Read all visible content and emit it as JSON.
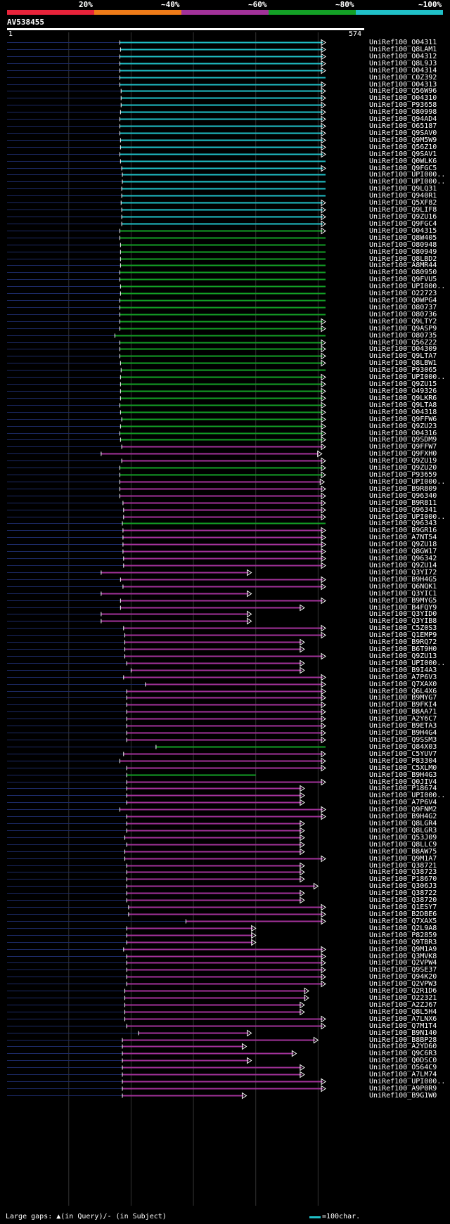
{
  "legend": {
    "labels": [
      "20%",
      "~40%",
      "~60%",
      "~80%",
      "~100%"
    ],
    "colors": [
      "#e8233a",
      "#ef7b18",
      "#a2329a",
      "#13a026",
      "#20c0c8"
    ]
  },
  "query": {
    "id": "AV538455",
    "start": "1",
    "end": "574"
  },
  "hits": [
    {
      "name": "UniRef100_O04311",
      "class": 4,
      "start": 182,
      "end": 512,
      "arrow": true
    },
    {
      "name": "UniRef100_Q8LAM1",
      "class": 4,
      "start": 183,
      "end": 512,
      "arrow": true
    },
    {
      "name": "UniRef100_O04312",
      "class": 4,
      "start": 182,
      "end": 512,
      "arrow": true
    },
    {
      "name": "UniRef100_Q8L9J3",
      "class": 4,
      "start": 182,
      "end": 512,
      "arrow": true
    },
    {
      "name": "UniRef100_O04314",
      "class": 4,
      "start": 182,
      "end": 512,
      "arrow": true
    },
    {
      "name": "UniRef100_C0Z392",
      "class": 4,
      "start": 182,
      "end": 512,
      "arrow": false
    },
    {
      "name": "UniRef100_O04313",
      "class": 4,
      "start": 182,
      "end": 512,
      "arrow": true
    },
    {
      "name": "UniRef100_Q56W96",
      "class": 4,
      "start": 184,
      "end": 512,
      "arrow": true
    },
    {
      "name": "UniRef100_O04310",
      "class": 4,
      "start": 184,
      "end": 512,
      "arrow": true
    },
    {
      "name": "UniRef100_P93658",
      "class": 4,
      "start": 184,
      "end": 512,
      "arrow": true
    },
    {
      "name": "UniRef100_O80998",
      "class": 4,
      "start": 183,
      "end": 512,
      "arrow": true
    },
    {
      "name": "UniRef100_Q94AD4",
      "class": 4,
      "start": 182,
      "end": 512,
      "arrow": true
    },
    {
      "name": "UniRef100_O65187",
      "class": 4,
      "start": 182,
      "end": 512,
      "arrow": true
    },
    {
      "name": "UniRef100_Q9SAV0",
      "class": 4,
      "start": 182,
      "end": 512,
      "arrow": true
    },
    {
      "name": "UniRef100_Q9M5W9",
      "class": 4,
      "start": 183,
      "end": 512,
      "arrow": true
    },
    {
      "name": "UniRef100_Q56Z10",
      "class": 4,
      "start": 183,
      "end": 512,
      "arrow": true
    },
    {
      "name": "UniRef100_Q9SAV1",
      "class": 4,
      "start": 182,
      "end": 512,
      "arrow": true
    },
    {
      "name": "UniRef100_Q0WLK6",
      "class": 4,
      "start": 183,
      "end": 512,
      "arrow": false
    },
    {
      "name": "UniRef100_Q9FGC5",
      "class": 4,
      "start": 185,
      "end": 512,
      "arrow": true
    },
    {
      "name": "UniRef100_UPI000..",
      "class": 4,
      "start": 186,
      "end": 512,
      "arrow": false
    },
    {
      "name": "UniRef100_UPI000..",
      "class": 4,
      "start": 186,
      "end": 512,
      "arrow": false
    },
    {
      "name": "UniRef100_Q9LQ31",
      "class": 4,
      "start": 185,
      "end": 512,
      "arrow": false
    },
    {
      "name": "UniRef100_Q940R1",
      "class": 4,
      "start": 185,
      "end": 512,
      "arrow": false
    },
    {
      "name": "UniRef100_Q5XF82",
      "class": 4,
      "start": 184,
      "end": 512,
      "arrow": true
    },
    {
      "name": "UniRef100_Q9LIF8",
      "class": 4,
      "start": 185,
      "end": 512,
      "arrow": true
    },
    {
      "name": "UniRef100_Q9ZU16",
      "class": 4,
      "start": 185,
      "end": 512,
      "arrow": true
    },
    {
      "name": "UniRef100_Q9FGC4",
      "class": 4,
      "start": 185,
      "end": 512,
      "arrow": true
    },
    {
      "name": "UniRef100_O04315",
      "class": 3,
      "start": 182,
      "end": 512,
      "arrow": true
    },
    {
      "name": "UniRef100_Q8W405",
      "class": 3,
      "start": 182,
      "end": 512,
      "arrow": false
    },
    {
      "name": "UniRef100_O80948",
      "class": 3,
      "start": 183,
      "end": 512,
      "arrow": false
    },
    {
      "name": "UniRef100_O80949",
      "class": 3,
      "start": 183,
      "end": 512,
      "arrow": false
    },
    {
      "name": "UniRef100_Q8LBD2",
      "class": 3,
      "start": 183,
      "end": 512,
      "arrow": false
    },
    {
      "name": "UniRef100_A8MR44",
      "class": 3,
      "start": 183,
      "end": 512,
      "arrow": false
    },
    {
      "name": "UniRef100_O80950",
      "class": 3,
      "start": 182,
      "end": 512,
      "arrow": false
    },
    {
      "name": "UniRef100_Q9FVU5",
      "class": 3,
      "start": 182,
      "end": 512,
      "arrow": false
    },
    {
      "name": "UniRef100_UPI000..",
      "class": 3,
      "start": 183,
      "end": 512,
      "arrow": false
    },
    {
      "name": "UniRef100_O22723",
      "class": 3,
      "start": 183,
      "end": 512,
      "arrow": false
    },
    {
      "name": "UniRef100_Q0WPG4",
      "class": 3,
      "start": 182,
      "end": 512,
      "arrow": false
    },
    {
      "name": "UniRef100_O80737",
      "class": 3,
      "start": 182,
      "end": 512,
      "arrow": false
    },
    {
      "name": "UniRef100_O80736",
      "class": 3,
      "start": 182,
      "end": 512,
      "arrow": false
    },
    {
      "name": "UniRef100_Q9LTY2",
      "class": 3,
      "start": 182,
      "end": 512,
      "arrow": true
    },
    {
      "name": "UniRef100_Q9ASP9",
      "class": 3,
      "start": 182,
      "end": 512,
      "arrow": true
    },
    {
      "name": "UniRef100_O80735",
      "class": 3,
      "start": 174,
      "end": 512,
      "arrow": false
    },
    {
      "name": "UniRef100_Q56Z22",
      "class": 3,
      "start": 182,
      "end": 512,
      "arrow": true
    },
    {
      "name": "UniRef100_O04309",
      "class": 3,
      "start": 182,
      "end": 512,
      "arrow": true
    },
    {
      "name": "UniRef100_Q9LTA7",
      "class": 3,
      "start": 182,
      "end": 512,
      "arrow": true
    },
    {
      "name": "UniRef100_Q8LBW1",
      "class": 3,
      "start": 183,
      "end": 512,
      "arrow": true
    },
    {
      "name": "UniRef100_P93065",
      "class": 3,
      "start": 184,
      "end": 512,
      "arrow": false
    },
    {
      "name": "UniRef100_UPI000..",
      "class": 3,
      "start": 183,
      "end": 512,
      "arrow": true
    },
    {
      "name": "UniRef100_Q9ZU15",
      "class": 3,
      "start": 183,
      "end": 512,
      "arrow": true
    },
    {
      "name": "UniRef100_O49326",
      "class": 3,
      "start": 183,
      "end": 512,
      "arrow": true
    },
    {
      "name": "UniRef100_Q9LKR6",
      "class": 3,
      "start": 183,
      "end": 512,
      "arrow": true
    },
    {
      "name": "UniRef100_Q9LTA8",
      "class": 3,
      "start": 182,
      "end": 512,
      "arrow": true
    },
    {
      "name": "UniRef100_O04318",
      "class": 3,
      "start": 183,
      "end": 512,
      "arrow": true
    },
    {
      "name": "UniRef100_Q9FFW6",
      "class": 3,
      "start": 185,
      "end": 512,
      "arrow": true
    },
    {
      "name": "UniRef100_Q9ZU23",
      "class": 3,
      "start": 183,
      "end": 512,
      "arrow": true
    },
    {
      "name": "UniRef100_O04316",
      "class": 3,
      "start": 182,
      "end": 512,
      "arrow": true
    },
    {
      "name": "UniRef100_Q9SDM9",
      "class": 3,
      "start": 183,
      "end": 512,
      "arrow": true
    },
    {
      "name": "UniRef100_Q9FFW7",
      "class": 2,
      "start": 185,
      "end": 512,
      "arrow": true
    },
    {
      "name": "UniRef100_Q9FXH0",
      "class": 2,
      "start": 152,
      "end": 506,
      "arrow": true
    },
    {
      "name": "UniRef100_Q9ZU19",
      "class": 2,
      "start": 185,
      "end": 512,
      "arrow": true
    },
    {
      "name": "UniRef100_Q9ZU20",
      "class": 3,
      "start": 182,
      "end": 512,
      "arrow": true
    },
    {
      "name": "UniRef100_P93659",
      "class": 3,
      "start": 182,
      "end": 512,
      "arrow": true
    },
    {
      "name": "UniRef100_UPI000..",
      "class": 2,
      "start": 182,
      "end": 510,
      "arrow": true
    },
    {
      "name": "UniRef100_B9R809",
      "class": 2,
      "start": 182,
      "end": 512,
      "arrow": true
    },
    {
      "name": "UniRef100_Q96340",
      "class": 2,
      "start": 182,
      "end": 512,
      "arrow": true
    },
    {
      "name": "UniRef100_B9R811",
      "class": 2,
      "start": 187,
      "end": 512,
      "arrow": true
    },
    {
      "name": "UniRef100_Q96341",
      "class": 2,
      "start": 188,
      "end": 512,
      "arrow": true
    },
    {
      "name": "UniRef100_UPI000..",
      "class": 2,
      "start": 188,
      "end": 512,
      "arrow": true
    },
    {
      "name": "UniRef100_Q96343",
      "class": 3,
      "start": 186,
      "end": 512,
      "arrow": false
    },
    {
      "name": "UniRef100_B9GR16",
      "class": 2,
      "start": 187,
      "end": 512,
      "arrow": true
    },
    {
      "name": "UniRef100_A7NT54",
      "class": 2,
      "start": 187,
      "end": 512,
      "arrow": true
    },
    {
      "name": "UniRef100_Q9ZU18",
      "class": 2,
      "start": 187,
      "end": 512,
      "arrow": true
    },
    {
      "name": "UniRef100_Q8GW17",
      "class": 2,
      "start": 187,
      "end": 512,
      "arrow": true
    },
    {
      "name": "UniRef100_Q96342",
      "class": 2,
      "start": 188,
      "end": 512,
      "arrow": true
    },
    {
      "name": "UniRef100_Q9ZU14",
      "class": 2,
      "start": 188,
      "end": 512,
      "arrow": true
    },
    {
      "name": "UniRef100_Q3YI72",
      "class": 2,
      "start": 152,
      "end": 393,
      "arrow": true
    },
    {
      "name": "UniRef100_B9H4G5",
      "class": 2,
      "start": 183,
      "end": 512,
      "arrow": true
    },
    {
      "name": "UniRef100_Q6NQK1",
      "class": 2,
      "start": 187,
      "end": 512,
      "arrow": true
    },
    {
      "name": "UniRef100_Q3YIC1",
      "class": 2,
      "start": 152,
      "end": 393,
      "arrow": true
    },
    {
      "name": "UniRef100_B9MYG5",
      "class": 2,
      "start": 183,
      "end": 512,
      "arrow": true
    },
    {
      "name": "UniRef100_B4FQY9",
      "class": 2,
      "start": 183,
      "end": 478,
      "arrow": true
    },
    {
      "name": "UniRef100_Q3YID0",
      "class": 2,
      "start": 152,
      "end": 393,
      "arrow": true
    },
    {
      "name": "UniRef100_Q3YIB8",
      "class": 2,
      "start": 152,
      "end": 393,
      "arrow": true
    },
    {
      "name": "UniRef100_C5Z0S3",
      "class": 2,
      "start": 188,
      "end": 512,
      "arrow": true
    },
    {
      "name": "UniRef100_Q1EMP9",
      "class": 2,
      "start": 190,
      "end": 512,
      "arrow": true
    },
    {
      "name": "UniRef100_B9RQ72",
      "class": 2,
      "start": 190,
      "end": 478,
      "arrow": true
    },
    {
      "name": "UniRef100_B6T9H0",
      "class": 2,
      "start": 190,
      "end": 478,
      "arrow": true
    },
    {
      "name": "UniRef100_Q9ZU13",
      "class": 2,
      "start": 190,
      "end": 512,
      "arrow": true
    },
    {
      "name": "UniRef100_UPI000..",
      "class": 2,
      "start": 193,
      "end": 478,
      "arrow": true
    },
    {
      "name": "UniRef100_B9I4A3",
      "class": 2,
      "start": 200,
      "end": 478,
      "arrow": true
    },
    {
      "name": "UniRef100_A7P6V3",
      "class": 2,
      "start": 188,
      "end": 512,
      "arrow": true
    },
    {
      "name": "UniRef100_Q7XAX0",
      "class": 2,
      "start": 223,
      "end": 512,
      "arrow": true
    },
    {
      "name": "UniRef100_Q6L4X6",
      "class": 2,
      "start": 193,
      "end": 512,
      "arrow": true
    },
    {
      "name": "UniRef100_B9MYG7",
      "class": 2,
      "start": 193,
      "end": 512,
      "arrow": true
    },
    {
      "name": "UniRef100_B9FKI4",
      "class": 2,
      "start": 193,
      "end": 512,
      "arrow": true
    },
    {
      "name": "UniRef100_B8AA71",
      "class": 2,
      "start": 193,
      "end": 512,
      "arrow": true
    },
    {
      "name": "UniRef100_A2Y6C7",
      "class": 2,
      "start": 193,
      "end": 512,
      "arrow": true
    },
    {
      "name": "UniRef100_B9ETA3",
      "class": 2,
      "start": 193,
      "end": 512,
      "arrow": true
    },
    {
      "name": "UniRef100_B9H4G4",
      "class": 2,
      "start": 193,
      "end": 512,
      "arrow": true
    },
    {
      "name": "UniRef100_Q9SSM3",
      "class": 2,
      "start": 193,
      "end": 512,
      "arrow": true
    },
    {
      "name": "UniRef100_Q84X03",
      "class": 3,
      "start": 240,
      "end": 512,
      "arrow": false
    },
    {
      "name": "UniRef100_C5YUV7",
      "class": 2,
      "start": 188,
      "end": 512,
      "arrow": true
    },
    {
      "name": "UniRef100_P83304",
      "class": 2,
      "start": 182,
      "end": 512,
      "arrow": true
    },
    {
      "name": "UniRef100_C5XLM0",
      "class": 2,
      "start": 193,
      "end": 512,
      "arrow": true
    },
    {
      "name": "UniRef100_B9H4G3",
      "class": 3,
      "start": 193,
      "end": 400,
      "arrow": false
    },
    {
      "name": "UniRef100_Q0JIV4",
      "class": 2,
      "start": 193,
      "end": 512,
      "arrow": true
    },
    {
      "name": "UniRef100_P18674",
      "class": 2,
      "start": 193,
      "end": 478,
      "arrow": true
    },
    {
      "name": "UniRef100_UPI000..",
      "class": 2,
      "start": 193,
      "end": 478,
      "arrow": true
    },
    {
      "name": "UniRef100_A7P6V4",
      "class": 2,
      "start": 193,
      "end": 478,
      "arrow": true
    },
    {
      "name": "UniRef100_Q9FNM2",
      "class": 2,
      "start": 182,
      "end": 512,
      "arrow": true
    },
    {
      "name": "UniRef100_B9H4G2",
      "class": 2,
      "start": 193,
      "end": 512,
      "arrow": true
    },
    {
      "name": "UniRef100_Q8LGR4",
      "class": 2,
      "start": 193,
      "end": 478,
      "arrow": true
    },
    {
      "name": "UniRef100_Q8LGR3",
      "class": 2,
      "start": 193,
      "end": 478,
      "arrow": true
    },
    {
      "name": "UniRef100_Q53J09",
      "class": 2,
      "start": 190,
      "end": 478,
      "arrow": true
    },
    {
      "name": "UniRef100_Q8LLC9",
      "class": 2,
      "start": 193,
      "end": 478,
      "arrow": true
    },
    {
      "name": "UniRef100_B8AW75",
      "class": 2,
      "start": 190,
      "end": 478,
      "arrow": true
    },
    {
      "name": "UniRef100_Q9M1A7",
      "class": 2,
      "start": 190,
      "end": 512,
      "arrow": true
    },
    {
      "name": "UniRef100_Q38721",
      "class": 2,
      "start": 193,
      "end": 478,
      "arrow": true
    },
    {
      "name": "UniRef100_Q38723",
      "class": 2,
      "start": 193,
      "end": 478,
      "arrow": true
    },
    {
      "name": "UniRef100_P18670",
      "class": 2,
      "start": 193,
      "end": 478,
      "arrow": true
    },
    {
      "name": "UniRef100_Q306J3",
      "class": 2,
      "start": 193,
      "end": 500,
      "arrow": true
    },
    {
      "name": "UniRef100_Q38722",
      "class": 2,
      "start": 193,
      "end": 478,
      "arrow": true
    },
    {
      "name": "UniRef100_Q38720",
      "class": 2,
      "start": 193,
      "end": 478,
      "arrow": true
    },
    {
      "name": "UniRef100_Q1ESY7",
      "class": 2,
      "start": 196,
      "end": 512,
      "arrow": true
    },
    {
      "name": "UniRef100_B2DBE6",
      "class": 2,
      "start": 196,
      "end": 512,
      "arrow": true
    },
    {
      "name": "UniRef100_Q7XAX5",
      "class": 2,
      "start": 288,
      "end": 512,
      "arrow": true
    },
    {
      "name": "UniRef100_Q2L9A8",
      "class": 2,
      "start": 193,
      "end": 400,
      "arrow": true
    },
    {
      "name": "UniRef100_P82859",
      "class": 2,
      "start": 193,
      "end": 400,
      "arrow": true
    },
    {
      "name": "UniRef100_Q9TBR3",
      "class": 2,
      "start": 193,
      "end": 400,
      "arrow": true
    },
    {
      "name": "UniRef100_Q9M1A9",
      "class": 2,
      "start": 188,
      "end": 512,
      "arrow": true
    },
    {
      "name": "UniRef100_Q3MVK8",
      "class": 2,
      "start": 193,
      "end": 512,
      "arrow": true
    },
    {
      "name": "UniRef100_Q2VPW4",
      "class": 2,
      "start": 193,
      "end": 512,
      "arrow": true
    },
    {
      "name": "UniRef100_Q9SE37",
      "class": 2,
      "start": 193,
      "end": 512,
      "arrow": true
    },
    {
      "name": "UniRef100_Q94K20",
      "class": 2,
      "start": 193,
      "end": 512,
      "arrow": true
    },
    {
      "name": "UniRef100_Q2VPW3",
      "class": 2,
      "start": 193,
      "end": 512,
      "arrow": true
    },
    {
      "name": "UniRef100_Q2R1D6",
      "class": 2,
      "start": 190,
      "end": 485,
      "arrow": true
    },
    {
      "name": "UniRef100_O22321",
      "class": 2,
      "start": 190,
      "end": 485,
      "arrow": true
    },
    {
      "name": "UniRef100_A2ZJ67",
      "class": 2,
      "start": 190,
      "end": 478,
      "arrow": true
    },
    {
      "name": "UniRef100_Q8L5H4",
      "class": 2,
      "start": 190,
      "end": 478,
      "arrow": true
    },
    {
      "name": "UniRef100_A7LNX6",
      "class": 2,
      "start": 190,
      "end": 512,
      "arrow": true
    },
    {
      "name": "UniRef100_Q7M1T4",
      "class": 2,
      "start": 193,
      "end": 512,
      "arrow": true
    },
    {
      "name": "UniRef100_B9N140",
      "class": 2,
      "start": 212,
      "end": 393,
      "arrow": true
    },
    {
      "name": "UniRef100_B8BP28",
      "class": 2,
      "start": 186,
      "end": 500,
      "arrow": true
    },
    {
      "name": "UniRef100_A2YD60",
      "class": 2,
      "start": 186,
      "end": 385,
      "arrow": true
    },
    {
      "name": "UniRef100_Q9C6R3",
      "class": 2,
      "start": 186,
      "end": 465,
      "arrow": true
    },
    {
      "name": "UniRef100_Q0DSC0",
      "class": 2,
      "start": 186,
      "end": 393,
      "arrow": true
    },
    {
      "name": "UniRef100_O564C9",
      "class": 2,
      "start": 186,
      "end": 478,
      "arrow": true
    },
    {
      "name": "UniRef100_A7LM74",
      "class": 2,
      "start": 186,
      "end": 478,
      "arrow": true
    },
    {
      "name": "UniRef100_UPI000..",
      "class": 2,
      "start": 186,
      "end": 512,
      "arrow": true
    },
    {
      "name": "UniRef100_A9P0R9",
      "class": 2,
      "start": 186,
      "end": 512,
      "arrow": true
    },
    {
      "name": "UniRef100_B9G1W0",
      "class": 2,
      "start": 186,
      "end": 385,
      "arrow": true
    }
  ],
  "footer": {
    "gaps_text": "Large gaps: ▲(in Query)/- (in Subject)",
    "scale_text": "=100char.",
    "scale_color": "#20c0c8"
  }
}
